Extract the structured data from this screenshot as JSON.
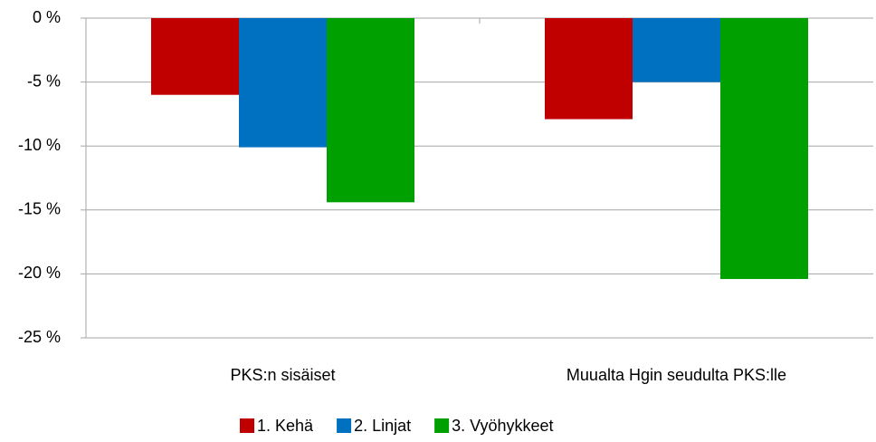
{
  "chart_data": {
    "type": "bar",
    "categories": [
      "PKS:n sisäiset",
      "Muualta Hgin seudulta PKS:lle"
    ],
    "series": [
      {
        "name": "1. Kehä",
        "color": "#c00000",
        "values": [
          -6.0,
          -7.9
        ]
      },
      {
        "name": "2. Linjat",
        "color": "#0070c0",
        "values": [
          -10.1,
          -5.0
        ]
      },
      {
        "name": "3. Vyöhykkeet",
        "color": "#00a000",
        "values": [
          -14.4,
          -20.4
        ]
      }
    ],
    "ylim": [
      -25,
      0
    ],
    "yticks": [
      {
        "value": 0,
        "label": "0 %"
      },
      {
        "value": -5,
        "label": "-5 %"
      },
      {
        "value": -10,
        "label": "-10 %"
      },
      {
        "value": -15,
        "label": "-15 %"
      },
      {
        "value": -20,
        "label": "-20 %"
      },
      {
        "value": -25,
        "label": "-25 %"
      }
    ],
    "grid": true,
    "legend": "bottom"
  }
}
